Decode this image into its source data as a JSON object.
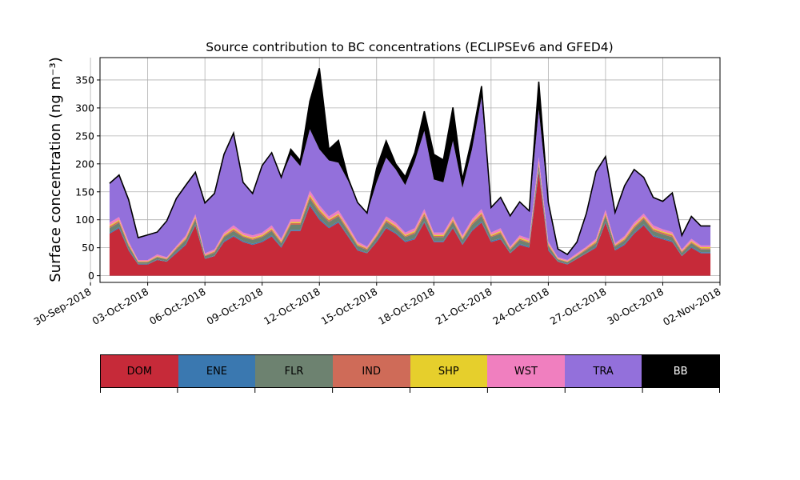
{
  "chart_data": {
    "type": "area",
    "stacked": true,
    "title": "Source contribution to BC concentrations (ECLIPSEv6 and GFED4)",
    "ylabel": "Surface concentration (ng m⁻³)",
    "xlabel": "",
    "ylim": [
      -12,
      390
    ],
    "xlim": [
      "2018-09-30T12:00",
      "2018-11-02T00:00"
    ],
    "yticks": [
      0,
      50,
      100,
      150,
      200,
      250,
      300,
      350
    ],
    "xtick_labels": [
      "30-Sep-2018",
      "03-Oct-2018",
      "06-Oct-2018",
      "09-Oct-2018",
      "12-Oct-2018",
      "15-Oct-2018",
      "18-Oct-2018",
      "21-Oct-2018",
      "24-Oct-2018",
      "27-Oct-2018",
      "30-Oct-2018",
      "02-Nov-2018"
    ],
    "xtick_dates": [
      "2018-09-30",
      "2018-10-03",
      "2018-10-06",
      "2018-10-09",
      "2018-10-12",
      "2018-10-15",
      "2018-10-18",
      "2018-10-21",
      "2018-10-24",
      "2018-10-27",
      "2018-10-30",
      "2018-11-02"
    ],
    "grid": true,
    "x": [
      "2018-10-01T00:00",
      "2018-10-01T12:00",
      "2018-10-02T00:00",
      "2018-10-02T12:00",
      "2018-10-03T00:00",
      "2018-10-03T12:00",
      "2018-10-04T00:00",
      "2018-10-04T12:00",
      "2018-10-05T00:00",
      "2018-10-05T12:00",
      "2018-10-06T00:00",
      "2018-10-06T12:00",
      "2018-10-07T00:00",
      "2018-10-07T12:00",
      "2018-10-08T00:00",
      "2018-10-08T12:00",
      "2018-10-09T00:00",
      "2018-10-09T12:00",
      "2018-10-10T00:00",
      "2018-10-10T12:00",
      "2018-10-11T00:00",
      "2018-10-11T12:00",
      "2018-10-12T00:00",
      "2018-10-12T12:00",
      "2018-10-13T00:00",
      "2018-10-13T12:00",
      "2018-10-14T00:00",
      "2018-10-14T12:00",
      "2018-10-15T00:00",
      "2018-10-15T12:00",
      "2018-10-16T00:00",
      "2018-10-16T12:00",
      "2018-10-17T00:00",
      "2018-10-17T12:00",
      "2018-10-18T00:00",
      "2018-10-18T12:00",
      "2018-10-19T00:00",
      "2018-10-19T12:00",
      "2018-10-20T00:00",
      "2018-10-20T12:00",
      "2018-10-21T00:00",
      "2018-10-21T12:00",
      "2018-10-22T00:00",
      "2018-10-22T12:00",
      "2018-10-23T00:00",
      "2018-10-23T12:00",
      "2018-10-24T00:00",
      "2018-10-24T12:00",
      "2018-10-25T00:00",
      "2018-10-25T12:00",
      "2018-10-26T00:00",
      "2018-10-26T12:00",
      "2018-10-27T00:00",
      "2018-10-27T12:00",
      "2018-10-28T00:00",
      "2018-10-28T12:00",
      "2018-10-29T00:00",
      "2018-10-29T12:00",
      "2018-10-30T00:00",
      "2018-10-30T12:00",
      "2018-10-31T00:00",
      "2018-10-31T12:00",
      "2018-11-01T00:00",
      "2018-11-01T12:00"
    ],
    "series": [
      {
        "name": "DOM",
        "color": "#c62a39",
        "values": [
          75,
          85,
          45,
          20,
          20,
          28,
          25,
          40,
          55,
          90,
          30,
          35,
          60,
          70,
          60,
          55,
          60,
          70,
          50,
          80,
          80,
          125,
          100,
          85,
          95,
          70,
          45,
          40,
          60,
          85,
          75,
          60,
          65,
          95,
          60,
          60,
          85,
          55,
          80,
          95,
          60,
          65,
          40,
          55,
          50,
          185,
          45,
          25,
          20,
          30,
          40,
          50,
          95,
          45,
          55,
          75,
          90,
          70,
          65,
          60,
          35,
          50,
          40,
          40
        ]
      },
      {
        "name": "ENE",
        "color": "#3a78b0",
        "values": [
          2,
          2,
          2,
          1,
          1,
          1,
          1,
          2,
          2,
          2,
          1,
          1,
          2,
          2,
          2,
          2,
          2,
          2,
          2,
          2,
          2,
          3,
          3,
          2,
          2,
          2,
          2,
          1,
          2,
          2,
          2,
          2,
          2,
          2,
          2,
          2,
          2,
          2,
          2,
          2,
          2,
          2,
          1,
          2,
          2,
          3,
          2,
          1,
          1,
          1,
          1,
          2,
          2,
          2,
          2,
          2,
          2,
          2,
          2,
          2,
          1,
          2,
          2,
          2
        ]
      },
      {
        "name": "FLR",
        "color": "#6d8270",
        "values": [
          8,
          8,
          6,
          3,
          3,
          4,
          3,
          5,
          7,
          8,
          4,
          5,
          7,
          8,
          7,
          7,
          7,
          8,
          6,
          9,
          9,
          10,
          10,
          9,
          9,
          8,
          6,
          5,
          7,
          9,
          8,
          7,
          8,
          10,
          7,
          7,
          9,
          7,
          9,
          10,
          7,
          8,
          5,
          7,
          6,
          10,
          6,
          3,
          3,
          4,
          5,
          6,
          10,
          5,
          6,
          8,
          9,
          8,
          7,
          7,
          5,
          6,
          5,
          5
        ]
      },
      {
        "name": "IND",
        "color": "#cf6b58",
        "values": [
          3,
          3,
          2,
          1,
          1,
          1,
          1,
          2,
          2,
          3,
          1,
          2,
          2,
          3,
          2,
          2,
          2,
          3,
          2,
          3,
          3,
          4,
          4,
          3,
          3,
          3,
          2,
          2,
          2,
          3,
          3,
          2,
          3,
          4,
          2,
          2,
          3,
          2,
          3,
          4,
          2,
          3,
          2,
          2,
          2,
          4,
          2,
          1,
          1,
          1,
          2,
          2,
          3,
          2,
          2,
          3,
          3,
          3,
          3,
          3,
          2,
          2,
          2,
          2
        ]
      },
      {
        "name": "SHP",
        "color": "#e6cf2c",
        "values": [
          2,
          2,
          2,
          1,
          1,
          1,
          1,
          1,
          2,
          2,
          1,
          1,
          2,
          2,
          2,
          2,
          2,
          2,
          2,
          2,
          2,
          3,
          3,
          2,
          2,
          2,
          2,
          1,
          2,
          2,
          2,
          2,
          2,
          2,
          2,
          2,
          2,
          2,
          2,
          2,
          2,
          2,
          1,
          2,
          2,
          2,
          2,
          1,
          1,
          1,
          1,
          2,
          2,
          1,
          2,
          2,
          2,
          2,
          2,
          2,
          1,
          2,
          2,
          2
        ]
      },
      {
        "name": "WST",
        "color": "#f07fbf",
        "values": [
          5,
          5,
          4,
          2,
          2,
          3,
          2,
          3,
          4,
          5,
          3,
          3,
          4,
          5,
          4,
          4,
          4,
          5,
          4,
          5,
          5,
          7,
          6,
          5,
          6,
          5,
          4,
          3,
          4,
          5,
          5,
          4,
          5,
          6,
          4,
          4,
          5,
          4,
          5,
          6,
          4,
          5,
          3,
          4,
          4,
          8,
          4,
          2,
          2,
          3,
          3,
          4,
          6,
          3,
          4,
          5,
          5,
          5,
          4,
          4,
          3,
          4,
          3,
          3
        ]
      },
      {
        "name": "TRA",
        "color": "#9370db",
        "values": [
          70,
          75,
          75,
          40,
          45,
          40,
          65,
          85,
          90,
          75,
          90,
          100,
          140,
          165,
          90,
          75,
          120,
          130,
          110,
          115,
          95,
          110,
          100,
          100,
          85,
          80,
          70,
          60,
          90,
          105,
          95,
          85,
          120,
          140,
          95,
          90,
          135,
          85,
          125,
          200,
          45,
          55,
          55,
          60,
          50,
          85,
          70,
          15,
          10,
          20,
          60,
          120,
          95,
          55,
          90,
          95,
          65,
          50,
          50,
          70,
          25,
          40,
          35,
          35
        ]
      },
      {
        "name": "BB",
        "color": "#000000",
        "values": [
          0,
          0,
          0,
          0,
          0,
          0,
          0,
          0,
          0,
          0,
          0,
          0,
          0,
          0,
          0,
          0,
          0,
          0,
          0,
          10,
          10,
          50,
          145,
          20,
          40,
          5,
          0,
          0,
          25,
          30,
          10,
          15,
          15,
          35,
          45,
          40,
          60,
          15,
          20,
          20,
          0,
          0,
          0,
          0,
          0,
          50,
          0,
          0,
          0,
          0,
          0,
          0,
          0,
          0,
          0,
          0,
          0,
          0,
          0,
          0,
          0,
          0,
          0,
          0
        ]
      }
    ]
  }
}
